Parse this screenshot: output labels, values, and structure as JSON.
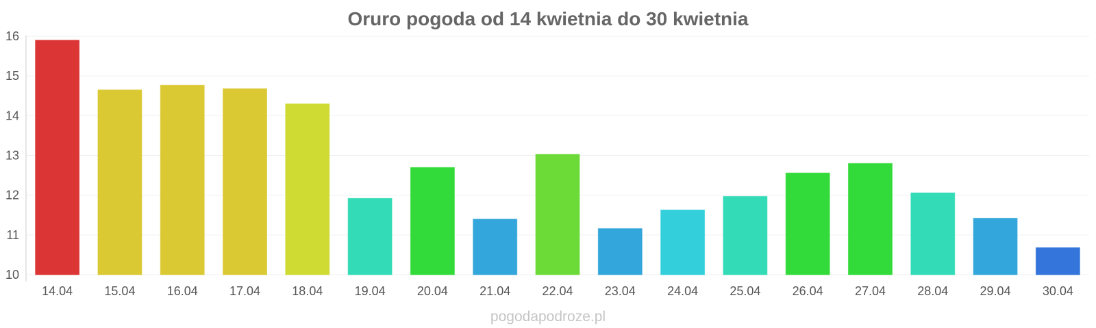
{
  "chart_data": {
    "type": "bar",
    "title": "Oruro pogoda od 14 kwietnia do 30 kwietnia",
    "xlabel": "",
    "ylabel": "",
    "categories": [
      "14.04",
      "15.04",
      "16.04",
      "17.04",
      "18.04",
      "19.04",
      "20.04",
      "21.04",
      "22.04",
      "23.04",
      "24.04",
      "25.04",
      "26.04",
      "27.04",
      "28.04",
      "29.04",
      "30.04"
    ],
    "values": [
      15.9,
      14.65,
      14.77,
      14.68,
      14.3,
      11.92,
      12.7,
      11.4,
      13.03,
      11.16,
      11.63,
      11.97,
      12.56,
      12.8,
      12.06,
      11.42,
      10.68
    ],
    "colors": [
      "#dc3535",
      "#dbc933",
      "#dbc933",
      "#dbc933",
      "#cfdb33",
      "#33dbb7",
      "#33db3a",
      "#33a7db",
      "#6ddb37",
      "#33a7db",
      "#33cfdb",
      "#33dbb7",
      "#33db3a",
      "#33db3a",
      "#33dbb7",
      "#33a7db",
      "#3375db"
    ],
    "ylim": [
      10,
      16
    ],
    "yticks": [
      "10",
      "11",
      "12",
      "13",
      "14",
      "15",
      "16"
    ],
    "grid": true,
    "legend": "none"
  },
  "watermark": "pogodapodroze.pl"
}
